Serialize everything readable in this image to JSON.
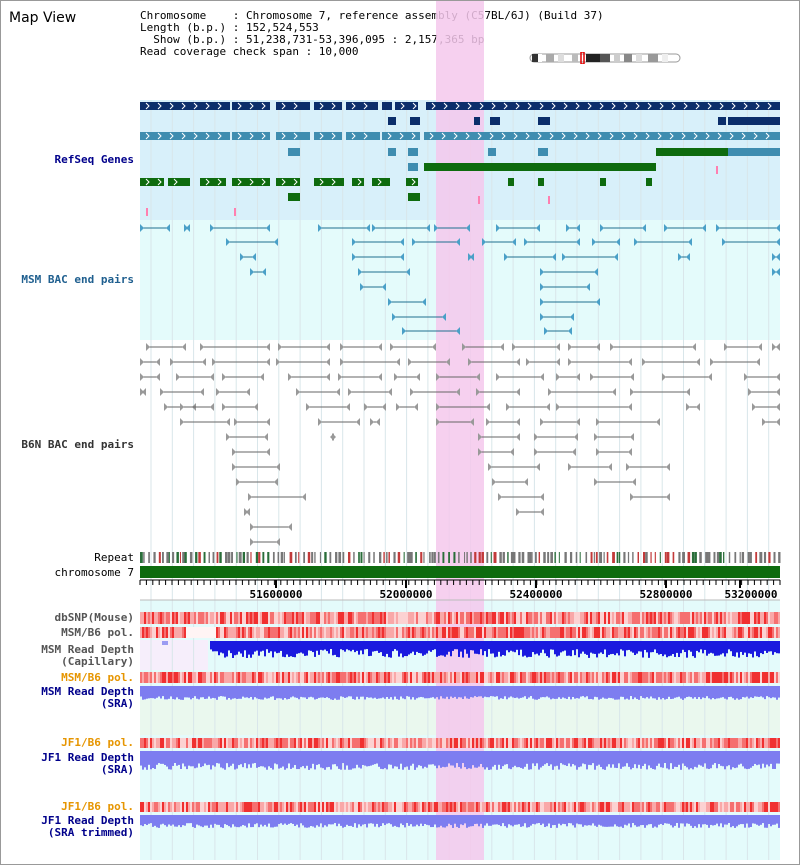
{
  "title": "Map View",
  "info": {
    "line1": "Chromosome    : Chromosome 7, reference assembly (C57BL/6J) (Build 37)",
    "line2": "Length (b.p.) : 152,524,553",
    "line3": "  Show (b.p.) : 51,238,731-53,396,095 : 2,157,365 bp",
    "line4": "Read coverage check span : 10,000"
  },
  "tracks": {
    "refseq": "RefSeq Genes",
    "msm_bac": "MSM BAC end pairs",
    "b6n_bac": "B6N BAC end pairs",
    "repeat": "Repeat",
    "chromosome": "chromosome 7",
    "dbsnp": "dbSNP(Mouse)",
    "msm_b6_pol_1": "MSM/B6 pol.",
    "msm_cap_1": "MSM Read Depth",
    "msm_cap_2": "(Capillary)",
    "msm_b6_pol_2": "MSM/B6 pol.",
    "msm_sra_1": "MSM Read Depth",
    "msm_sra_2": "(SRA)",
    "jf1_b6_pol_1": "JF1/B6 pol.",
    "jf1_sra_1": "JF1 Read Depth",
    "jf1_sra_2": "(SRA)",
    "jf1_b6_pol_2": "JF1/B6 pol.",
    "jf1_trim_1": "JF1 Read Depth",
    "jf1_trim_2": "(SRA trimmed)"
  },
  "axis": {
    "ticks": [
      "51600000",
      "52000000",
      "52400000",
      "52800000",
      "53200000"
    ]
  },
  "colors": {
    "refseq_dark": "#0b2e6b",
    "refseq_mid": "#3f8db0",
    "refseq_green": "#0e6b0e",
    "refseq_bg": "#d8f0fa",
    "bac_bg": "#e4fbfb",
    "highlight": "#f5c8ec",
    "label_blue": "#00008b",
    "label_orange": "#e69500",
    "msm_bac_line": "#1f6f8f",
    "b6n_line": "#666666",
    "depth_dark": "#1a1adf",
    "depth_light": "#7d7df0"
  }
}
